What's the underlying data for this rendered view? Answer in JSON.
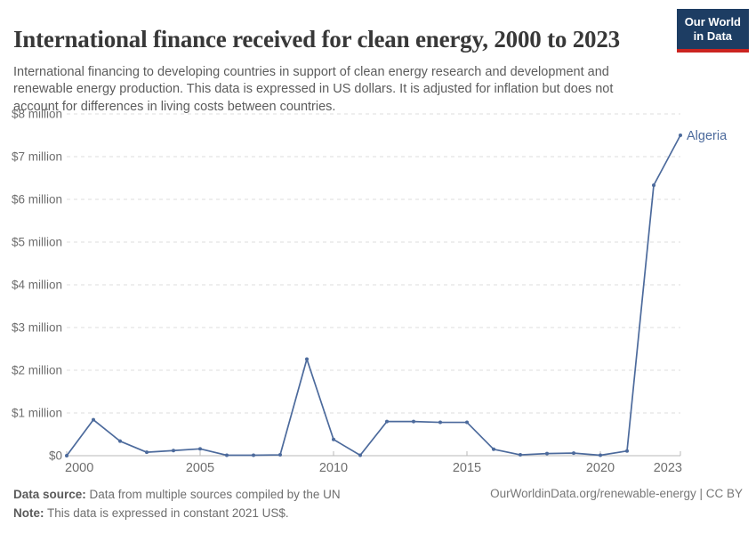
{
  "header": {
    "title": "International finance received for clean energy, 2000 to 2023",
    "subtitle": "International financing to developing countries in support of clean energy research and development and renewable energy production. This data is expressed in US dollars. It is adjusted for inflation but does not account for differences in living costs between countries.",
    "logo": {
      "line1": "Our World",
      "line2": "in Data",
      "bg_color": "#1d3d63",
      "accent_color": "#cb2420"
    }
  },
  "chart_data": {
    "type": "line",
    "title": "International finance received for clean energy, 2000 to 2023",
    "xlabel": "",
    "ylabel": "",
    "unit": "constant 2021 US$, millions",
    "grid": "horizontal dashed",
    "legend_position": "end-of-line label",
    "xlim": [
      2000,
      2023
    ],
    "ylim": [
      0,
      8
    ],
    "xticks": [
      2000,
      2005,
      2010,
      2015,
      2020,
      2023
    ],
    "yticks": [
      {
        "value": 0,
        "label": "$0"
      },
      {
        "value": 1,
        "label": "$1 million"
      },
      {
        "value": 2,
        "label": "$2 million"
      },
      {
        "value": 3,
        "label": "$3 million"
      },
      {
        "value": 4,
        "label": "$4 million"
      },
      {
        "value": 5,
        "label": "$5 million"
      },
      {
        "value": 6,
        "label": "$6 million"
      },
      {
        "value": 7,
        "label": "$7 million"
      },
      {
        "value": 8,
        "label": "$8 million"
      }
    ],
    "series": [
      {
        "name": "Algeria",
        "color": "#4c6a9c",
        "x": [
          2000,
          2001,
          2002,
          2003,
          2004,
          2005,
          2006,
          2007,
          2008,
          2009,
          2010,
          2011,
          2012,
          2013,
          2014,
          2015,
          2016,
          2017,
          2018,
          2019,
          2020,
          2021,
          2022,
          2023
        ],
        "values": [
          0,
          0.84,
          0.34,
          0.08,
          0.12,
          0.16,
          0.01,
          0.01,
          0.02,
          2.26,
          0.38,
          0.01,
          0.8,
          0.8,
          0.78,
          0.78,
          0.15,
          0.02,
          0.05,
          0.06,
          0.01,
          0.11,
          6.33,
          7.5
        ]
      }
    ],
    "style": {
      "gridline_color": "#dedede",
      "axis_color": "#b8b8b8",
      "tick_label_color": "#6e6e6e"
    }
  },
  "footer": {
    "source_label": "Data source:",
    "source_text": " Data from multiple sources compiled by the UN",
    "note_label": "Note:",
    "note_text": " This data is expressed in constant 2021 US$.",
    "credit": "OurWorldinData.org/renewable-energy | CC BY"
  }
}
